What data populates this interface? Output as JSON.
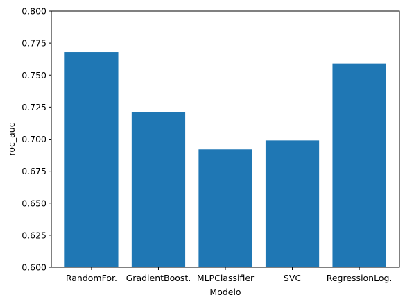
{
  "chart_data": {
    "type": "bar",
    "categories": [
      "RandomFor.",
      "GradientBoost.",
      "MLPClassifier",
      "SVC",
      "RegressionLog."
    ],
    "values": [
      0.768,
      0.721,
      0.692,
      0.699,
      0.759
    ],
    "xlabel": "Modelo",
    "ylabel": "roc_auc",
    "ylim": [
      0.6,
      0.8
    ],
    "yticks": [
      0.6,
      0.625,
      0.65,
      0.675,
      0.7,
      0.725,
      0.75,
      0.775,
      0.8
    ],
    "ytick_labels": [
      "0.600",
      "0.625",
      "0.650",
      "0.675",
      "0.700",
      "0.725",
      "0.750",
      "0.775",
      "0.800"
    ],
    "bar_color": "#1f77b4",
    "grid": false,
    "legend": "none"
  }
}
